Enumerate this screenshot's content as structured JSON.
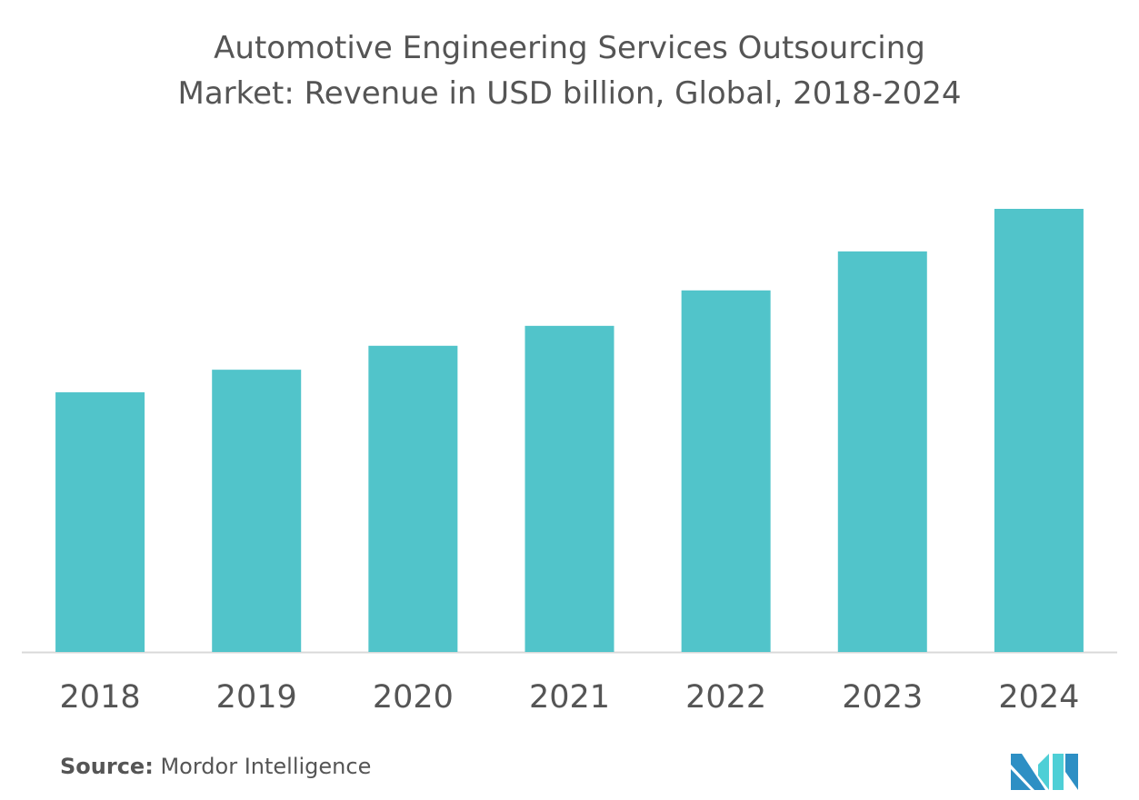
{
  "chart_data": {
    "type": "bar",
    "title": "Automotive Engineering Services Outsourcing Market: Revenue in USD billion, Global, 2018-2024",
    "title_lines": [
      "Automotive Engineering Services Outsourcing",
      "Market: Revenue in USD billion, Global, 2018-2024"
    ],
    "categories": [
      "2018",
      "2019",
      "2020",
      "2021",
      "2022",
      "2023",
      "2024"
    ],
    "values": [
      58.6,
      63.7,
      69.1,
      73.6,
      81.6,
      90.4,
      100
    ],
    "value_note": "relative index (no axis values shown)",
    "xlabel": "",
    "ylabel": "",
    "ylim": [
      0,
      100
    ],
    "grid": false,
    "bar_color": "#51C4CA"
  },
  "source": {
    "label": "Source:",
    "text": "Mordor Intelligence"
  },
  "logo": {
    "name": "mordor-intelligence-logo",
    "colors": [
      "#2D8FC4",
      "#4ECFD6"
    ]
  }
}
